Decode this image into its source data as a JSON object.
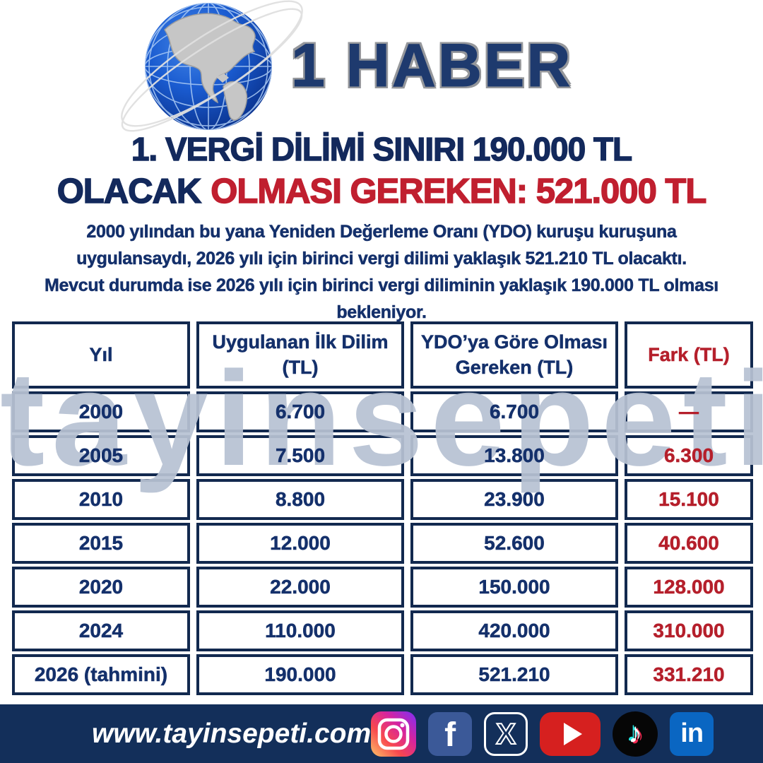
{
  "logo": {
    "brand": "1 HABER",
    "icon": "globe-americas-icon"
  },
  "headline": {
    "line1": "1. VERGİ DİLİMİ SINIRI 190.000 TL",
    "line2_prefix": "OLACAK",
    "line2_highlight": "OLMASI GEREKEN: 521.000 TL"
  },
  "intro": {
    "lines": [
      "2000 yılından bu yana Yeniden Değerleme Oranı (YDO) kuruşu kuruşuna",
      "uygulansaydı, 2026 yılı için birinci vergi dilimi yaklaşık 521.210 TL olacaktı.",
      "Mevcut durumda ise 2026 yılı için birinci vergi diliminin yaklaşık 190.000 TL olması",
      "bekleniyor."
    ]
  },
  "table": {
    "columns": [
      "Yıl",
      "Uygulanan İlk Dilim (TL)",
      "YDO’ya Göre Olması Gereken (TL)",
      "Fark (TL)"
    ],
    "rows": [
      [
        "2000",
        "6.700",
        "6.700",
        "—"
      ],
      [
        "2005",
        "7.500",
        "13.800",
        "6.300"
      ],
      [
        "2010",
        "8.800",
        "23.900",
        "15.100"
      ],
      [
        "2015",
        "12.000",
        "52.600",
        "40.600"
      ],
      [
        "2020",
        "22.000",
        "150.000",
        "128.000"
      ],
      [
        "2024",
        "110.000",
        "420.000",
        "310.000"
      ],
      [
        "2026 (tahmini)",
        "190.000",
        "521.210",
        "331.210"
      ]
    ]
  },
  "watermark": "tayinsepeti",
  "footer": {
    "website": "www.tayinsepeti.com",
    "social_icons": [
      {
        "name": "instagram-icon"
      },
      {
        "name": "facebook-icon",
        "glyph": "f"
      },
      {
        "name": "x-twitter-icon",
        "glyph": "X"
      },
      {
        "name": "youtube-icon"
      },
      {
        "name": "tiktok-icon",
        "glyph": "♪"
      },
      {
        "name": "linkedin-icon",
        "glyph": "in"
      }
    ]
  },
  "colors": {
    "navy": "#14306b",
    "navy_dark": "#13295c",
    "headline_red": "#c01f2f",
    "red": "#b51f2b",
    "border": "#12294f",
    "footer_bg": "#132f5a",
    "watermark": "#b8c2d3",
    "brand": "#1e3a6e"
  }
}
